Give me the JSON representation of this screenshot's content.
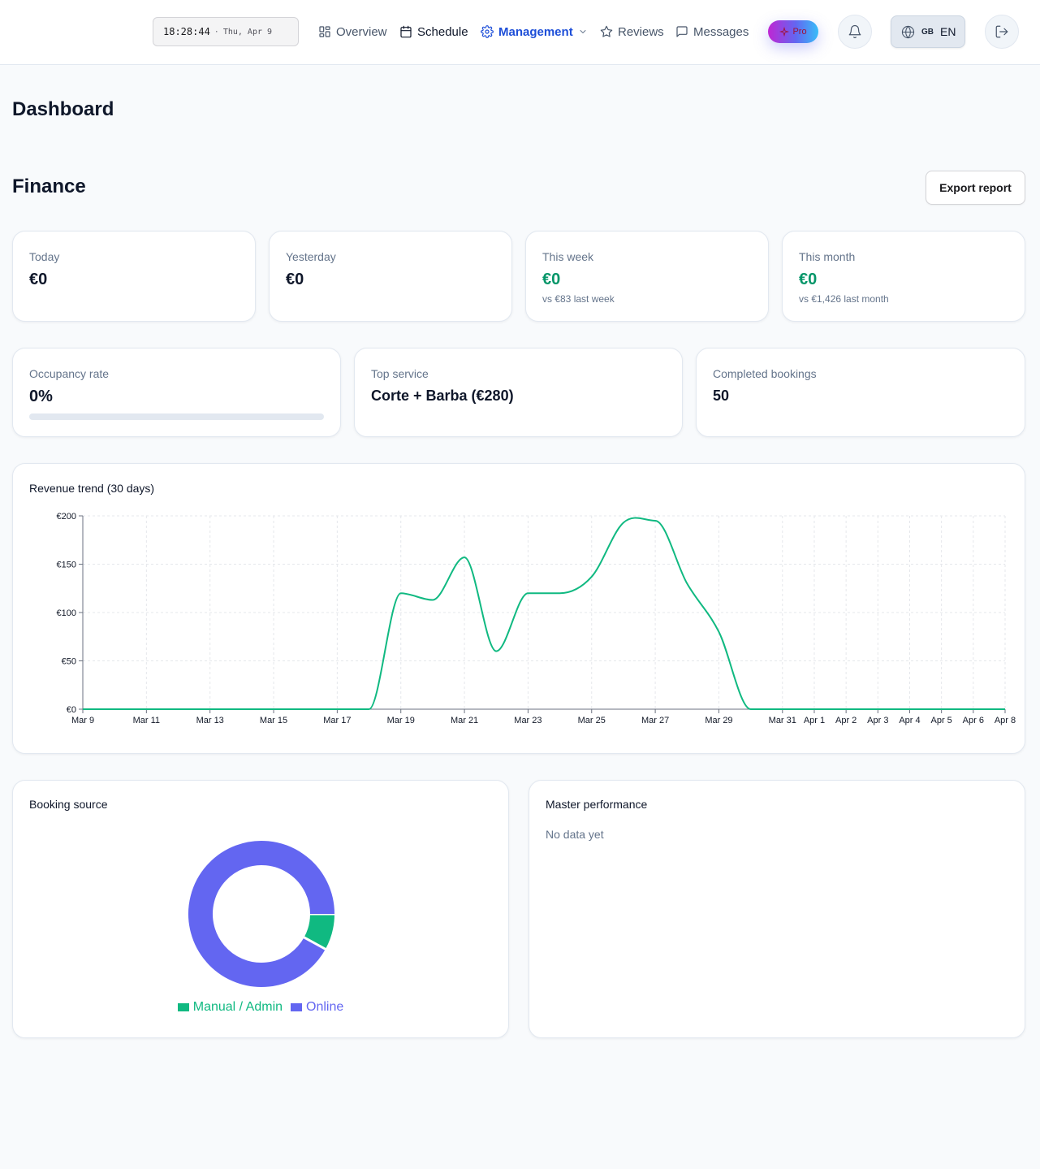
{
  "header": {
    "clock_time": "18:28:44",
    "clock_separator": "·",
    "clock_date": "Thu, Apr 9",
    "nav": [
      {
        "label": "Overview",
        "icon": "grid-icon"
      },
      {
        "label": "Schedule",
        "icon": "calendar-icon"
      },
      {
        "label": "Management",
        "icon": "gear-icon",
        "active": true
      },
      {
        "label": "Reviews",
        "icon": "star-icon"
      },
      {
        "label": "Messages",
        "icon": "message-icon"
      }
    ],
    "pro_label": "Pro",
    "lang_flag": "GB",
    "lang_code": "EN"
  },
  "page_title": "Dashboard",
  "finance": {
    "title": "Finance",
    "export_label": "Export report",
    "stats": [
      {
        "label": "Today",
        "value": "€0",
        "sub": ""
      },
      {
        "label": "Yesterday",
        "value": "€0",
        "sub": ""
      },
      {
        "label": "This week",
        "value": "€0",
        "sub": "vs €83 last week"
      },
      {
        "label": "This month",
        "value": "€0",
        "sub": "vs €1,426 last month"
      }
    ],
    "occupancy": {
      "label": "Occupancy rate",
      "value": "0%",
      "progress": 0
    },
    "top_service": {
      "label": "Top service",
      "value": "Corte + Barba (€280)"
    },
    "completed": {
      "label": "Completed bookings",
      "value": "50"
    }
  },
  "revenue_card": {
    "title": "Revenue trend (30 days)"
  },
  "booking_card": {
    "title": "Booking source"
  },
  "master_card": {
    "title": "Master performance",
    "empty": "No data yet"
  },
  "colors": {
    "accent": "#1d4ed8",
    "positive": "#059669",
    "line": "#10b981",
    "online": "#6366f1",
    "manual": "#10b981"
  },
  "chart_data": [
    {
      "type": "line",
      "title": "Revenue trend (30 days)",
      "x": [
        "Mar 9",
        "Mar 10",
        "Mar 11",
        "Mar 12",
        "Mar 13",
        "Mar 14",
        "Mar 15",
        "Mar 16",
        "Mar 17",
        "Mar 18",
        "Mar 19",
        "Mar 20",
        "Mar 21",
        "Mar 22",
        "Mar 23",
        "Mar 24",
        "Mar 25",
        "Mar 26",
        "Mar 27",
        "Mar 28",
        "Mar 29",
        "Mar 30",
        "Mar 31",
        "Apr 1",
        "Apr 2",
        "Apr 3",
        "Apr 4",
        "Apr 5",
        "Apr 6",
        "Apr 8"
      ],
      "x_ticks": [
        "Mar 9",
        "Mar 11",
        "Mar 13",
        "Mar 15",
        "Mar 17",
        "Mar 19",
        "Mar 21",
        "Mar 23",
        "Mar 25",
        "Mar 27",
        "Mar 29",
        "Mar 31",
        "Apr 1",
        "Apr 2",
        "Apr 3",
        "Apr 4",
        "Apr 5",
        "Apr 6",
        "Apr 8"
      ],
      "series": [
        {
          "values": [
            0,
            0,
            0,
            0,
            0,
            0,
            0,
            0,
            0,
            0,
            120,
            113,
            157,
            60,
            120,
            120,
            137,
            193,
            195,
            130,
            80,
            0,
            0,
            0,
            0,
            0,
            0,
            0,
            0,
            0
          ]
        }
      ],
      "y_ticks": [
        "€0",
        "€50",
        "€100",
        "€150",
        "€200"
      ],
      "ylim": [
        0,
        200
      ],
      "grid": true
    },
    {
      "type": "pie",
      "title": "Booking source",
      "categories": [
        "Manual / Admin",
        "Online"
      ],
      "values": [
        8,
        92
      ],
      "legend": "bottom"
    }
  ]
}
